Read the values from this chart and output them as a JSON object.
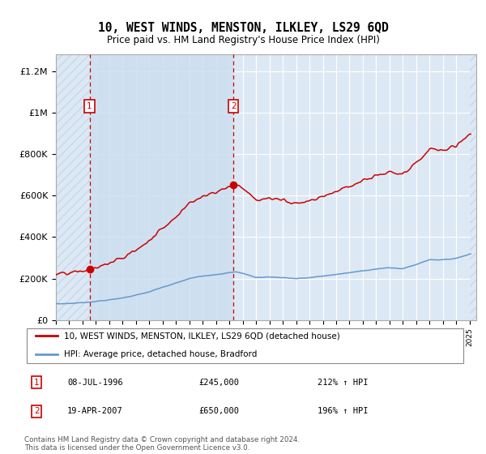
{
  "title": "10, WEST WINDS, MENSTON, ILKLEY, LS29 6QD",
  "subtitle": "Price paid vs. HM Land Registry's House Price Index (HPI)",
  "legend_line1": "10, WEST WINDS, MENSTON, ILKLEY, LS29 6QD (detached house)",
  "legend_line2": "HPI: Average price, detached house, Bradford",
  "footer": "Contains HM Land Registry data © Crown copyright and database right 2024.\nThis data is licensed under the Open Government Licence v3.0.",
  "table_row1": [
    "1",
    "08-JUL-1996",
    "£245,000",
    "212% ↑ HPI"
  ],
  "table_row2": [
    "2",
    "19-APR-2007",
    "£650,000",
    "196% ↑ HPI"
  ],
  "xlim": [
    1994.0,
    2025.5
  ],
  "ylim": [
    0,
    1280000
  ],
  "yticks": [
    0,
    200000,
    400000,
    600000,
    800000,
    1000000,
    1200000
  ],
  "ytick_labels": [
    "£0",
    "£200K",
    "£400K",
    "£600K",
    "£800K",
    "£1M",
    "£1.2M"
  ],
  "sale1_x": 1996.52,
  "sale1_y": 245000,
  "sale2_x": 2007.3,
  "sale2_y": 650000,
  "hatch_left_end": 1996.52,
  "hatch_right_start": 2025.0,
  "shade_start": 1996.52,
  "shade_end": 2007.3,
  "bg_color": "#dce9f5",
  "shade_color": "#dce9f5",
  "hatch_color": "#c8d8e8",
  "red_color": "#cc0000",
  "blue_color": "#6699cc",
  "grid_color": "#ffffff"
}
